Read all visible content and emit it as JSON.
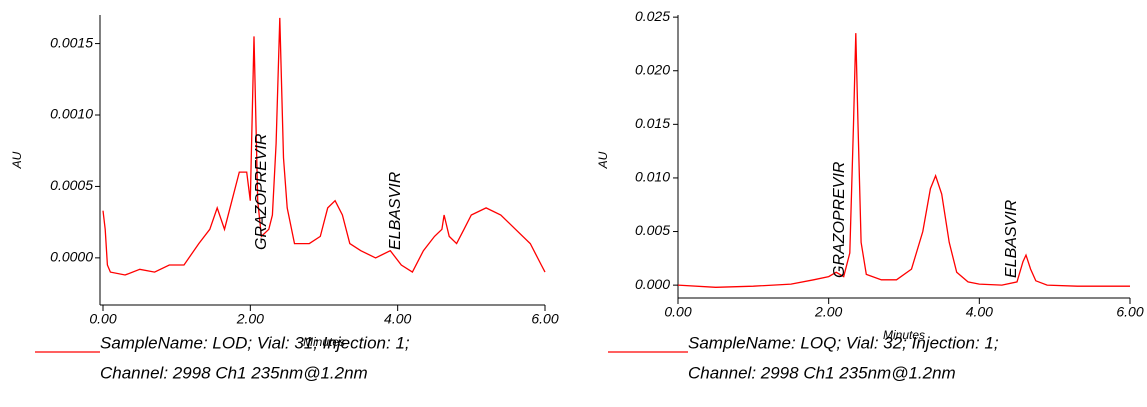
{
  "chart_data": [
    {
      "type": "line",
      "x_label": "Minutes",
      "y_label": "AU",
      "annotations": [
        "GRAZOPREVIR",
        "ELBASVIR"
      ],
      "legend_note": "Channel: 2998 Ch1 235nm@1.2nm",
      "xlim": [
        0,
        6
      ],
      "ylim": [
        -0.00033,
        0.0017
      ],
      "xticks": [
        {
          "value": 0,
          "label": "0.00"
        },
        {
          "value": 2,
          "label": "2.00"
        },
        {
          "value": 4,
          "label": "4.00"
        },
        {
          "value": 6,
          "label": "6.00"
        }
      ],
      "yticks": [
        {
          "value": 0,
          "label": "0.0000"
        },
        {
          "value": 0.0005,
          "label": "0.0005"
        },
        {
          "value": 0.001,
          "label": "0.0010"
        },
        {
          "value": 0.0015,
          "label": "0.0015"
        }
      ],
      "x": [
        0,
        0.03,
        0.06,
        0.1,
        0.3,
        0.5,
        0.7,
        0.9,
        1.1,
        1.3,
        1.45,
        1.55,
        1.65,
        1.75,
        1.85,
        1.95,
        2.0,
        2.05,
        2.1,
        2.15,
        2.25,
        2.3,
        2.35,
        2.4,
        2.45,
        2.5,
        2.6,
        2.8,
        2.95,
        3.05,
        3.15,
        3.25,
        3.35,
        3.5,
        3.7,
        3.9,
        4.05,
        4.2,
        4.35,
        4.5,
        4.6,
        4.63,
        4.7,
        4.8,
        4.9,
        5.0,
        5.2,
        5.4,
        5.6,
        5.8,
        5.95,
        6.0
      ],
      "series": [
        {
          "name": "SampleName: LOD;   Vial: 31;   Injection: 1;",
          "color": "#ff0000",
          "values": [
            0.00033,
            0.0002,
            -5e-05,
            -0.0001,
            -0.00012,
            -8e-05,
            -0.0001,
            -5e-05,
            -5e-05,
            0.0001,
            0.0002,
            0.00035,
            0.0002,
            0.0004,
            0.0006,
            0.0006,
            0.0004,
            0.00155,
            0.0004,
            0.00015,
            0.0002,
            0.0003,
            0.0008,
            0.00168,
            0.0007,
            0.00035,
            0.0001,
            0.0001,
            0.00015,
            0.00035,
            0.0004,
            0.0003,
            0.0001,
            5e-05,
            0.0,
            5e-05,
            -5e-05,
            -0.0001,
            5e-05,
            0.00015,
            0.0002,
            0.0003,
            0.00015,
            0.0001,
            0.0002,
            0.0003,
            0.00035,
            0.0003,
            0.0002,
            0.0001,
            -5e-05,
            -0.0001
          ]
        }
      ]
    },
    {
      "type": "line",
      "x_label": "Minutes",
      "y_label": "AU",
      "annotations": [
        "GRAZOPREVIR",
        "ELBASVIR"
      ],
      "legend_note": "Channel: 2998 Ch1 235nm@1.2nm",
      "xlim": [
        0,
        6
      ],
      "ylim": [
        -0.0012,
        0.0252
      ],
      "xticks": [
        {
          "value": 0,
          "label": "0.00"
        },
        {
          "value": 2,
          "label": "2.00"
        },
        {
          "value": 4,
          "label": "4.00"
        },
        {
          "value": 6,
          "label": "6.00"
        }
      ],
      "yticks": [
        {
          "value": 0,
          "label": "0.000"
        },
        {
          "value": 0.005,
          "label": "0.005"
        },
        {
          "value": 0.01,
          "label": "0.010"
        },
        {
          "value": 0.015,
          "label": "0.015"
        },
        {
          "value": 0.02,
          "label": "0.020"
        },
        {
          "value": 0.025,
          "label": "0.025"
        }
      ],
      "x": [
        0,
        0.5,
        1.0,
        1.5,
        1.8,
        2.0,
        2.1,
        2.2,
        2.28,
        2.33,
        2.36,
        2.39,
        2.43,
        2.5,
        2.7,
        2.9,
        3.1,
        3.25,
        3.35,
        3.42,
        3.5,
        3.6,
        3.7,
        3.85,
        4.0,
        4.3,
        4.5,
        4.58,
        4.62,
        4.68,
        4.75,
        4.9,
        5.3,
        6.0
      ],
      "series": [
        {
          "name": "SampleName: LOQ;   Vial: 32;   Injection: 1;",
          "color": "#ff0000",
          "values": [
            0.0,
            -0.0002,
            -0.0001,
            0.0001,
            0.0005,
            0.0008,
            0.0012,
            0.0008,
            0.003,
            0.015,
            0.0235,
            0.015,
            0.004,
            0.001,
            0.0005,
            0.0005,
            0.0015,
            0.005,
            0.009,
            0.0102,
            0.0085,
            0.004,
            0.0012,
            0.0003,
            0.0001,
            0.0,
            0.0003,
            0.0022,
            0.0028,
            0.0015,
            0.0004,
            0.0,
            -0.0001,
            -0.0001
          ]
        }
      ]
    }
  ]
}
